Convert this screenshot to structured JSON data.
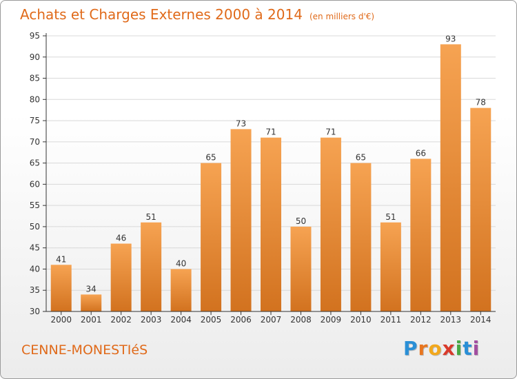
{
  "title": "Achats et Charges Externes 2000 à 2014",
  "unit_label": "(en milliers d'€)",
  "town": "CENNE-MONESTIéS",
  "logo": {
    "text": "Proxiti",
    "letter_colors": [
      "#2a8fd6",
      "#e8761f",
      "#f2a81d",
      "#d93a2b",
      "#49a844",
      "#2a8fd6",
      "#a24ea0"
    ]
  },
  "colors": {
    "title": "#e06a1a",
    "bar_top": "#f6a352",
    "bar_bottom": "#d2721f",
    "axis": "#333333",
    "grid": "#d8d8d8"
  },
  "chart_data": {
    "type": "bar",
    "title": "Achats et Charges Externes 2000 à 2014",
    "subtitle": "(en milliers d'€)",
    "xlabel": "",
    "ylabel": "",
    "categories": [
      "2000",
      "2001",
      "2002",
      "2003",
      "2004",
      "2005",
      "2006",
      "2007",
      "2008",
      "2009",
      "2010",
      "2011",
      "2012",
      "2013",
      "2014"
    ],
    "values": [
      41,
      34,
      46,
      51,
      40,
      65,
      73,
      71,
      50,
      71,
      65,
      51,
      66,
      93,
      78
    ],
    "ylim": [
      30,
      95
    ],
    "yticks": [
      30,
      35,
      40,
      45,
      50,
      55,
      60,
      65,
      70,
      75,
      80,
      85,
      90,
      95
    ],
    "grid": true,
    "data_labels": true
  }
}
